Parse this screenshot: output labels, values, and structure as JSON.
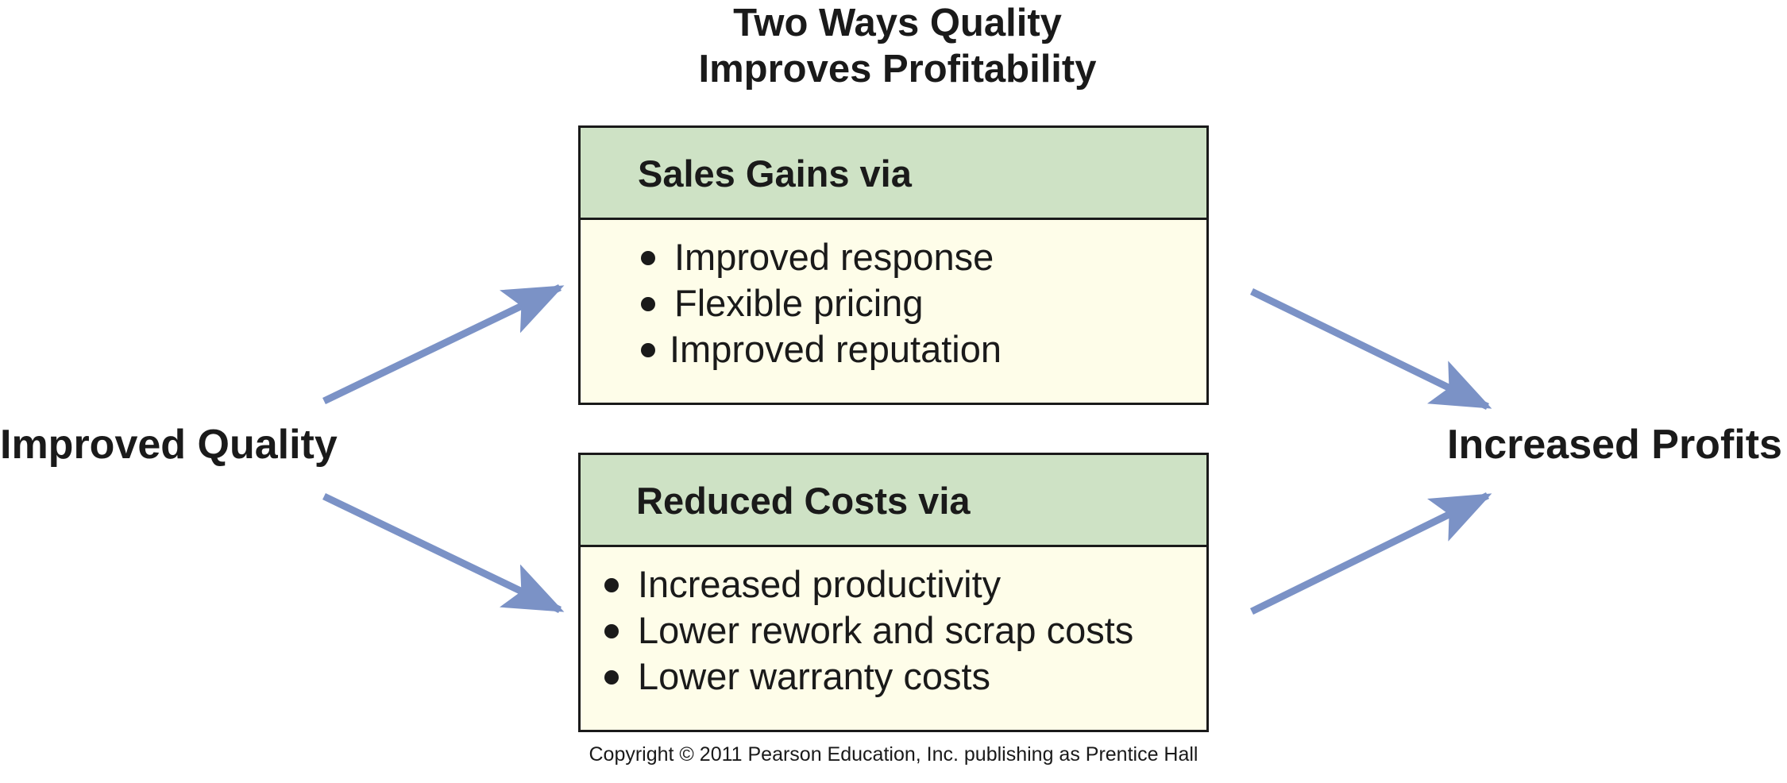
{
  "title": {
    "line1": "Two Ways Quality",
    "line2": "Improves Profitability"
  },
  "left_label": "Improved Quality",
  "right_label": "Increased Profits",
  "boxes": [
    {
      "header": "Sales Gains via",
      "items": [
        "Improved response",
        "Flexible pricing",
        "Improved reputation"
      ]
    },
    {
      "header": "Reduced Costs via",
      "items": [
        "Increased productivity",
        "Lower rework and scrap costs",
        "Lower warranty costs"
      ]
    }
  ],
  "copyright": "Copyright © 2011 Pearson Education, Inc. publishing as Prentice Hall",
  "colors": {
    "header_fill": "#cee2c5",
    "body_fill": "#fefde9",
    "arrow": "#7b92c6",
    "text": "#1a1a1a"
  }
}
